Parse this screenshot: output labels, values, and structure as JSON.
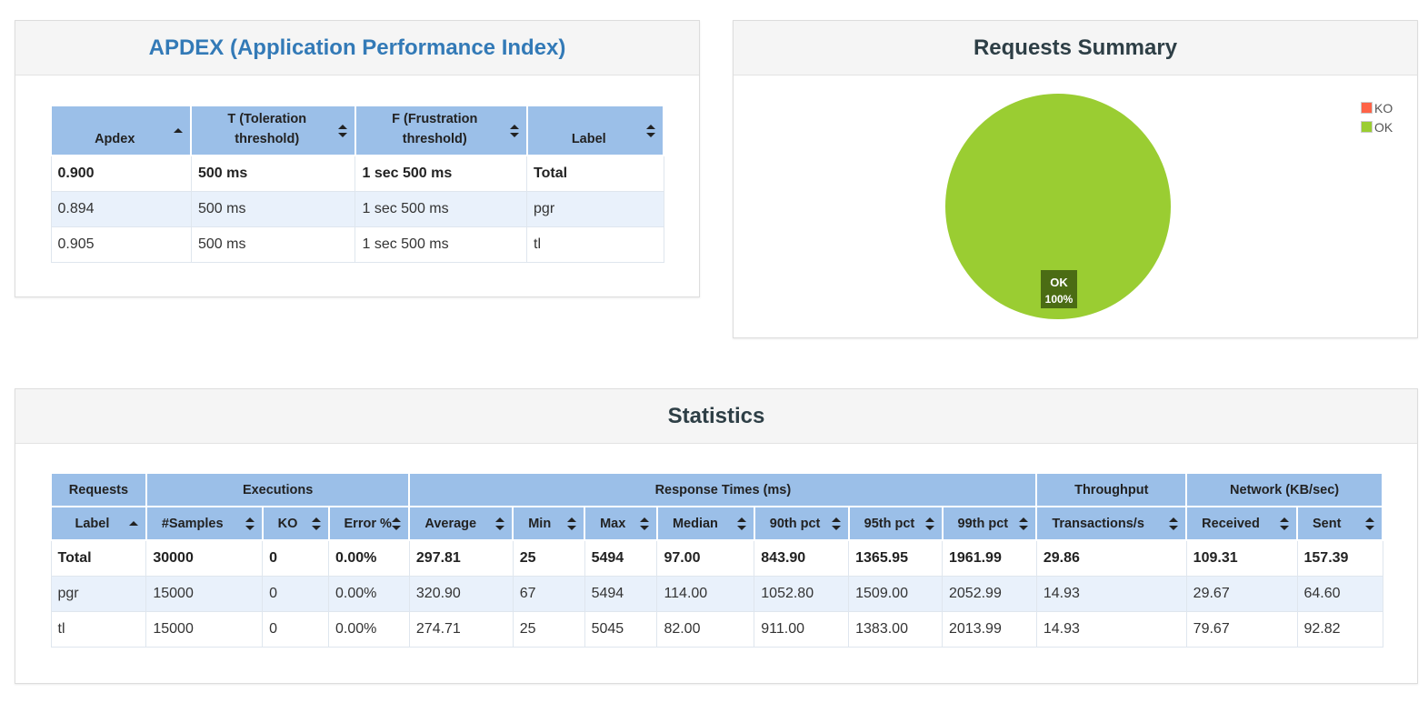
{
  "apdex": {
    "title": "APDEX (Application Performance Index)",
    "headers": [
      "Apdex",
      "T (Toleration threshold)",
      "F (Frustration threshold)",
      "Label"
    ],
    "rows": [
      [
        "0.900",
        "500 ms",
        "1 sec 500 ms",
        "Total"
      ],
      [
        "0.894",
        "500 ms",
        "1 sec 500 ms",
        "pgr"
      ],
      [
        "0.905",
        "500 ms",
        "1 sec 500 ms",
        "tl"
      ]
    ]
  },
  "summary": {
    "title": "Requests Summary",
    "legend": [
      {
        "label": "KO",
        "color": "#ff6347"
      },
      {
        "label": "OK",
        "color": "#9acd32"
      }
    ],
    "slice_label": "OK",
    "slice_percent": "100%",
    "ok_percent": 100,
    "ko_percent": 0
  },
  "statistics": {
    "title": "Statistics",
    "groups": [
      "Requests",
      "Executions",
      "Response Times (ms)",
      "Throughput",
      "Network (KB/sec)"
    ],
    "columns": [
      "Label",
      "#Samples",
      "KO",
      "Error %",
      "Average",
      "Min",
      "Max",
      "Median",
      "90th pct",
      "95th pct",
      "99th pct",
      "Transactions/s",
      "Received",
      "Sent"
    ],
    "rows": [
      [
        "Total",
        "30000",
        "0",
        "0.00%",
        "297.81",
        "25",
        "5494",
        "97.00",
        "843.90",
        "1365.95",
        "1961.99",
        "29.86",
        "109.31",
        "157.39"
      ],
      [
        "pgr",
        "15000",
        "0",
        "0.00%",
        "320.90",
        "67",
        "5494",
        "114.00",
        "1052.80",
        "1509.00",
        "2052.99",
        "14.93",
        "29.67",
        "64.60"
      ],
      [
        "tl",
        "15000",
        "0",
        "0.00%",
        "274.71",
        "25",
        "5045",
        "82.00",
        "911.00",
        "1383.00",
        "2013.99",
        "14.93",
        "79.67",
        "92.82"
      ]
    ]
  },
  "colors": {
    "header_bg": "#9bbfe8",
    "alt_row": "#e9f1fb",
    "ok": "#9acd32",
    "ko": "#ff6347",
    "title_link": "#337ab7"
  }
}
